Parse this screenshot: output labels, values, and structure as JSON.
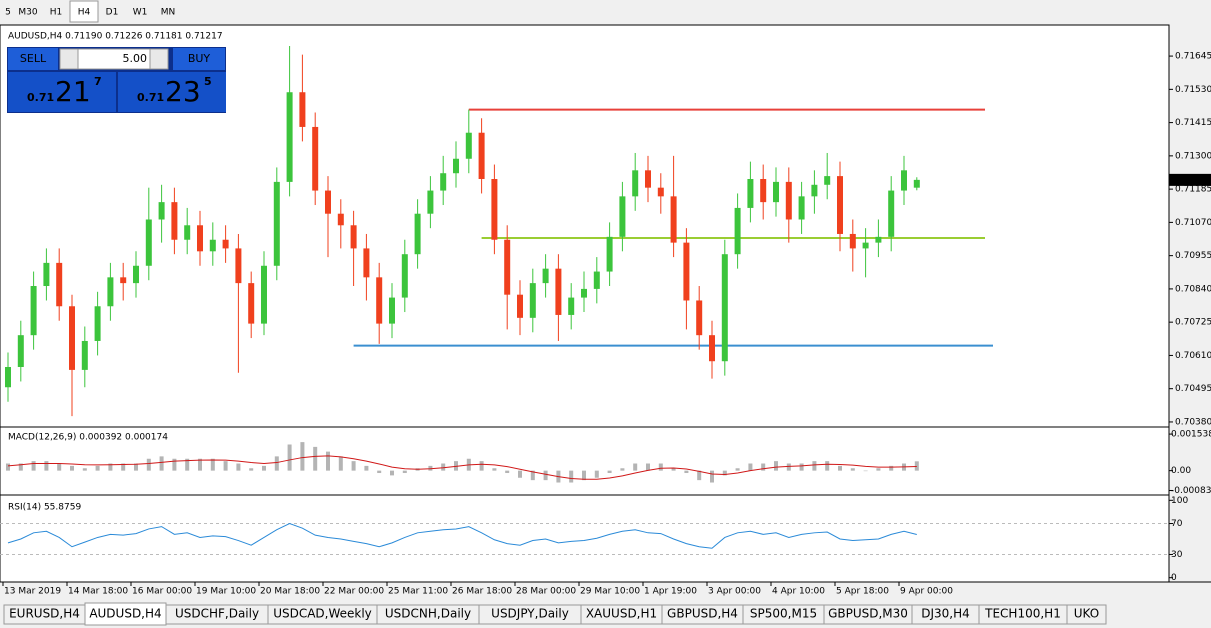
{
  "toolbar": {
    "timeframes": [
      "5",
      "M30",
      "H1",
      "H4",
      "D1",
      "W1",
      "MN"
    ],
    "active_index": 3
  },
  "header": "AUDUSD,H4  0.71190 0.71226 0.71181 0.71217",
  "trade_panel": {
    "sell": "SELL",
    "lot": "5.00",
    "buy": "BUY",
    "bid": {
      "prefix": "0.71",
      "big": "21",
      "small": "7"
    },
    "ask": {
      "prefix": "0.71",
      "big": "23",
      "small": "5"
    }
  },
  "chart_data": {
    "type": "candlestick",
    "candles": [
      [
        0.705,
        0.7062,
        0.7045,
        0.7057
      ],
      [
        0.7057,
        0.7073,
        0.7052,
        0.7068
      ],
      [
        0.7068,
        0.709,
        0.7063,
        0.7085
      ],
      [
        0.7085,
        0.7098,
        0.708,
        0.7093
      ],
      [
        0.7093,
        0.7098,
        0.7073,
        0.7078
      ],
      [
        0.7078,
        0.7082,
        0.704,
        0.7056
      ],
      [
        0.7056,
        0.7071,
        0.705,
        0.7066
      ],
      [
        0.7066,
        0.7083,
        0.7061,
        0.7078
      ],
      [
        0.7078,
        0.7093,
        0.7073,
        0.7088
      ],
      [
        0.7088,
        0.7093,
        0.708,
        0.7086
      ],
      [
        0.7086,
        0.7097,
        0.7081,
        0.7092
      ],
      [
        0.7092,
        0.7119,
        0.7087,
        0.7108
      ],
      [
        0.7108,
        0.712,
        0.71,
        0.7114
      ],
      [
        0.7114,
        0.7119,
        0.7096,
        0.7101
      ],
      [
        0.7101,
        0.7112,
        0.7096,
        0.7106
      ],
      [
        0.7106,
        0.7111,
        0.7092,
        0.7097
      ],
      [
        0.7097,
        0.7107,
        0.7092,
        0.7101
      ],
      [
        0.7101,
        0.7106,
        0.7093,
        0.7098
      ],
      [
        0.7098,
        0.7103,
        0.7055,
        0.7086
      ],
      [
        0.7086,
        0.709,
        0.7067,
        0.7072
      ],
      [
        0.7072,
        0.7097,
        0.7068,
        0.7092
      ],
      [
        0.7092,
        0.7126,
        0.7087,
        0.7121
      ],
      [
        0.7121,
        0.7168,
        0.7116,
        0.7152
      ],
      [
        0.7152,
        0.7165,
        0.7135,
        0.714
      ],
      [
        0.714,
        0.7145,
        0.7113,
        0.7118
      ],
      [
        0.7118,
        0.7123,
        0.7095,
        0.711
      ],
      [
        0.711,
        0.7115,
        0.7098,
        0.7106
      ],
      [
        0.7106,
        0.7111,
        0.7085,
        0.7098
      ],
      [
        0.7098,
        0.7103,
        0.708,
        0.7088
      ],
      [
        0.7088,
        0.7093,
        0.7065,
        0.7072
      ],
      [
        0.7072,
        0.7086,
        0.7067,
        0.7081
      ],
      [
        0.7081,
        0.7101,
        0.7076,
        0.7096
      ],
      [
        0.7096,
        0.7115,
        0.7091,
        0.711
      ],
      [
        0.711,
        0.7123,
        0.7105,
        0.7118
      ],
      [
        0.7118,
        0.713,
        0.7113,
        0.7124
      ],
      [
        0.7124,
        0.7135,
        0.7119,
        0.7129
      ],
      [
        0.7129,
        0.7146,
        0.7124,
        0.7138
      ],
      [
        0.7138,
        0.7143,
        0.7117,
        0.7122
      ],
      [
        0.7122,
        0.7127,
        0.7096,
        0.7101
      ],
      [
        0.7101,
        0.7106,
        0.707,
        0.7082
      ],
      [
        0.7082,
        0.7087,
        0.7068,
        0.7074
      ],
      [
        0.7074,
        0.7091,
        0.7069,
        0.7086
      ],
      [
        0.7086,
        0.7096,
        0.7081,
        0.7091
      ],
      [
        0.7091,
        0.7096,
        0.7066,
        0.7075
      ],
      [
        0.7075,
        0.7086,
        0.707,
        0.7081
      ],
      [
        0.7081,
        0.709,
        0.7076,
        0.7084
      ],
      [
        0.7084,
        0.7095,
        0.7079,
        0.709
      ],
      [
        0.709,
        0.7107,
        0.7085,
        0.7102
      ],
      [
        0.7102,
        0.7121,
        0.7097,
        0.7116
      ],
      [
        0.7116,
        0.7131,
        0.7111,
        0.7125
      ],
      [
        0.7125,
        0.713,
        0.7114,
        0.7119
      ],
      [
        0.7119,
        0.7124,
        0.711,
        0.7116
      ],
      [
        0.7116,
        0.713,
        0.7095,
        0.71
      ],
      [
        0.71,
        0.7105,
        0.707,
        0.708
      ],
      [
        0.708,
        0.7085,
        0.7063,
        0.7068
      ],
      [
        0.7068,
        0.7073,
        0.7053,
        0.7059
      ],
      [
        0.7059,
        0.7101,
        0.7054,
        0.7096
      ],
      [
        0.7096,
        0.7117,
        0.7091,
        0.7112
      ],
      [
        0.7112,
        0.7128,
        0.7107,
        0.7122
      ],
      [
        0.7122,
        0.7127,
        0.7108,
        0.7114
      ],
      [
        0.7114,
        0.7126,
        0.7109,
        0.7121
      ],
      [
        0.7121,
        0.7126,
        0.71,
        0.7108
      ],
      [
        0.7108,
        0.7121,
        0.7103,
        0.7116
      ],
      [
        0.7116,
        0.7125,
        0.711,
        0.712
      ],
      [
        0.712,
        0.7131,
        0.7115,
        0.7123
      ],
      [
        0.7123,
        0.7128,
        0.7097,
        0.7103
      ],
      [
        0.7103,
        0.7108,
        0.709,
        0.7098
      ],
      [
        0.7098,
        0.7105,
        0.7088,
        0.71
      ],
      [
        0.71,
        0.7108,
        0.7095,
        0.7102
      ],
      [
        0.7102,
        0.7123,
        0.7097,
        0.7118
      ],
      [
        0.7118,
        0.713,
        0.7113,
        0.7125
      ],
      [
        0.7119,
        0.71226,
        0.71181,
        0.71217
      ]
    ],
    "ylim": [
      0.70366,
      0.71749
    ],
    "yticks": [
      0.71645,
      {
        "value": 0.7153,
        "label": "0.71530"
      },
      0.71415,
      {
        "value": 0.713,
        "label": "0.71300"
      },
      0.71185,
      {
        "value": 0.7107,
        "label": "0.71070"
      },
      0.70955,
      {
        "value": 0.7084,
        "label": "0.70840"
      },
      0.70725,
      {
        "value": 0.7061,
        "label": "0.70610"
      },
      0.70495,
      {
        "value": 0.7038,
        "label": "0.70380"
      }
    ],
    "last_price": 0.71217,
    "levels": [
      {
        "price": 0.7146,
        "start": 36,
        "color": "#e8403a"
      },
      {
        "price": 0.71016,
        "start": 37,
        "color": "#9acd32"
      },
      {
        "price": 0.70644,
        "start": 27,
        "color": "#3a8fd0"
      }
    ],
    "x_labels": [
      "13 Mar 2019",
      "14 Mar 18:00",
      "16 Mar 00:00",
      "19 Mar 10:00",
      "20 Mar 18:00",
      "22 Mar 00:00",
      "25 Mar 11:00",
      "26 Mar 18:00",
      "28 Mar 00:00",
      "29 Mar 10:00",
      "1 Apr 19:00",
      "3 Apr 00:00",
      "4 Apr 10:00",
      "5 Apr 18:00",
      "9 Apr 00:00"
    ],
    "up_color": "#3cc43c",
    "down_color": "#f0401e"
  },
  "macd": {
    "label": "MACD(12,26,9) 0.000392 0.000174",
    "histogram": [
      0.0003,
      0.0003,
      0.0004,
      0.0004,
      0.0003,
      0.0002,
      0.0001,
      0.0002,
      0.0003,
      0.0003,
      0.0003,
      0.0005,
      0.0006,
      0.0005,
      0.0005,
      0.0005,
      0.0005,
      0.0004,
      0.0003,
      0.0001,
      0.0002,
      0.0006,
      0.0011,
      0.0012,
      0.001,
      0.0008,
      0.0006,
      0.0004,
      0.0002,
      -0.0001,
      -0.0002,
      -0.0001,
      0.0001,
      0.0002,
      0.0003,
      0.0004,
      0.0005,
      0.0004,
      0.0001,
      -0.0001,
      -0.0003,
      -0.0004,
      -0.0004,
      -0.0005,
      -0.0005,
      -0.0004,
      -0.0003,
      -0.0001,
      0.0001,
      0.0003,
      0.0003,
      0.0003,
      0.0001,
      -0.0001,
      -0.0004,
      -0.0005,
      -0.0002,
      0.0001,
      0.0003,
      0.0003,
      0.0004,
      0.0003,
      0.0003,
      0.0004,
      0.0004,
      0.0002,
      0.0001,
      0,
      0.0001,
      0.0002,
      0.0003,
      0.000392
    ],
    "signal": [
      0.0002,
      0.00025,
      0.0003,
      0.0003,
      0.0003,
      0.00028,
      0.00025,
      0.00024,
      0.00025,
      0.00026,
      0.00027,
      0.0003,
      0.00035,
      0.0004,
      0.00042,
      0.00044,
      0.00045,
      0.00044,
      0.0004,
      0.00034,
      0.0003,
      0.00034,
      0.00045,
      0.00055,
      0.0006,
      0.00062,
      0.00058,
      0.0005,
      0.0004,
      0.00028,
      0.00015,
      8e-05,
      6e-05,
      8e-05,
      0.00012,
      0.00018,
      0.00024,
      0.00027,
      0.00024,
      0.00017,
      6e-05,
      -5e-05,
      -0.00015,
      -0.00025,
      -0.00033,
      -0.00036,
      -0.00036,
      -0.00031,
      -0.00022,
      -0.0001,
      1e-05,
      0.0001,
      0.00011,
      7e-05,
      -3e-05,
      -0.00014,
      -0.00016,
      -0.0001,
      0,
      8e-05,
      0.00015,
      0.00018,
      0.0002,
      0.00024,
      0.00027,
      0.00026,
      0.00023,
      0.00018,
      0.00015,
      0.00015,
      0.00016,
      0.000174
    ],
    "ylim": [
      -0.000983,
      0.001794
    ],
    "yticks": [
      0.001538,
      {
        "value": 0,
        "label": "0.00"
      },
      -0.000835
    ],
    "hist_color": "#b4b4b4",
    "signal_color": "#d01818"
  },
  "rsi": {
    "label": "RSI(14) 55.8759",
    "values": [
      45,
      50,
      58,
      60,
      52,
      40,
      46,
      52,
      56,
      55,
      57,
      63,
      66,
      56,
      58,
      52,
      54,
      53,
      48,
      42,
      52,
      62,
      70,
      64,
      55,
      52,
      50,
      47,
      44,
      40,
      45,
      52,
      58,
      60,
      62,
      63,
      66,
      58,
      49,
      44,
      42,
      48,
      50,
      45,
      47,
      48,
      51,
      56,
      60,
      62,
      58,
      57,
      50,
      44,
      40,
      38,
      52,
      58,
      60,
      56,
      58,
      52,
      56,
      58,
      59,
      50,
      48,
      49,
      50,
      56,
      60,
      55.8759
    ],
    "ylim": [
      -3,
      103
    ],
    "yticks": [
      100,
      70,
      30,
      0
    ],
    "levels": [
      70,
      30
    ],
    "color": "#2a8ad8"
  },
  "tabs": {
    "items": [
      "EURUSD,H4",
      "AUDUSD,H4",
      "USDCHF,Daily",
      "USDCAD,Weekly",
      "USDCNH,Daily",
      "USDJPY,Daily",
      "XAUUSD,H1",
      "GBPUSD,H4",
      "SP500,M15",
      "GBPUSD,M30",
      "DJ30,H4",
      "TECH100,H1",
      "UKO"
    ],
    "active_index": 1
  }
}
